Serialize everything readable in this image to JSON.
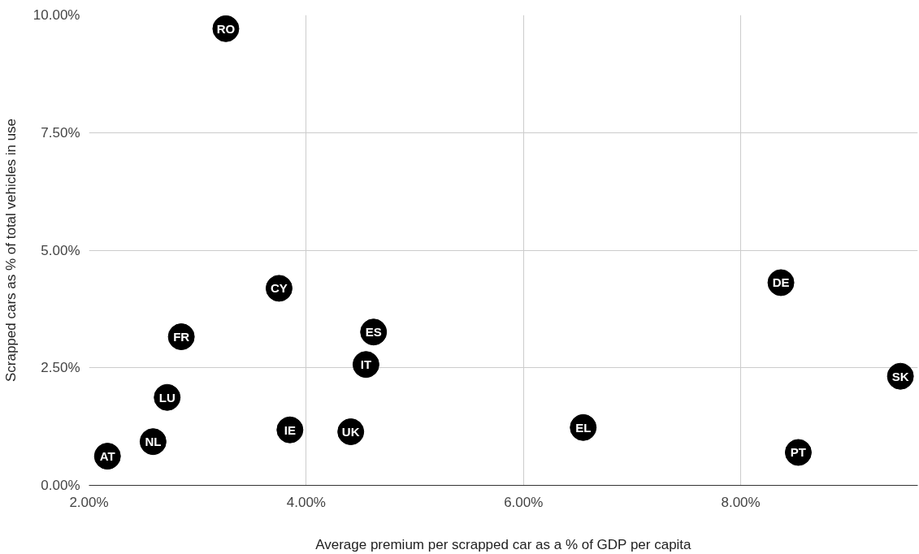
{
  "chart_data": {
    "type": "scatter",
    "xlabel": "Average premium per scrapped car as a % of GDP per capita",
    "ylabel": "Scrapped cars as % of total vehicles in use",
    "x": [
      3.26,
      3.75,
      8.37,
      2.85,
      4.62,
      4.55,
      9.47,
      2.72,
      3.85,
      4.41,
      6.55,
      2.59,
      2.17,
      8.53
    ],
    "series": [
      {
        "color": "#000000",
        "values": [
          9.71,
          4.19,
          4.31,
          3.16,
          3.26,
          2.57,
          2.32,
          1.87,
          1.18,
          1.14,
          1.23,
          0.93,
          0.62,
          0.7
        ]
      }
    ],
    "annotations": [
      {
        "text": "RO",
        "x": 3.26,
        "y": 9.71
      },
      {
        "text": "CY",
        "x": 3.75,
        "y": 4.19
      },
      {
        "text": "DE",
        "x": 8.37,
        "y": 4.31
      },
      {
        "text": "FR",
        "x": 2.85,
        "y": 3.16
      },
      {
        "text": "ES",
        "x": 4.62,
        "y": 3.26
      },
      {
        "text": "IT",
        "x": 4.55,
        "y": 2.57
      },
      {
        "text": "SK",
        "x": 9.47,
        "y": 2.32
      },
      {
        "text": "LU",
        "x": 2.72,
        "y": 1.87
      },
      {
        "text": "IE",
        "x": 3.85,
        "y": 1.18
      },
      {
        "text": "UK",
        "x": 4.41,
        "y": 1.14
      },
      {
        "text": "EL",
        "x": 6.55,
        "y": 1.23
      },
      {
        "text": "NL",
        "x": 2.59,
        "y": 0.93
      },
      {
        "text": "AT",
        "x": 2.17,
        "y": 0.62
      },
      {
        "text": "PT",
        "x": 8.53,
        "y": 0.7
      }
    ],
    "xlim": [
      2,
      9.63
    ],
    "ylim": [
      0,
      10
    ],
    "xticks": [
      {
        "value": 2,
        "label": "2.00%"
      },
      {
        "value": 4,
        "label": "4.00%"
      },
      {
        "value": 6,
        "label": "6.00%"
      },
      {
        "value": 8,
        "label": "8.00%"
      }
    ],
    "yticks": [
      {
        "value": 0,
        "label": "0.00%"
      },
      {
        "value": 2.5,
        "label": "2.50%"
      },
      {
        "value": 5,
        "label": "5.00%"
      },
      {
        "value": 7.5,
        "label": "7.50%"
      },
      {
        "value": 10,
        "label": "10.00%"
      }
    ],
    "grid": true,
    "marker": "circle"
  }
}
